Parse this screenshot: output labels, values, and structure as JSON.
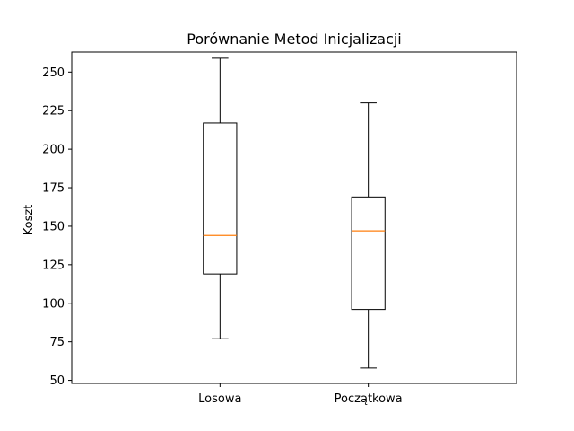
{
  "chart_data": {
    "type": "box",
    "title": "Porównanie Metod Inicjalizacji",
    "xlabel": "",
    "ylabel": "Koszt",
    "ylim": [
      48,
      263
    ],
    "yticks": [
      50,
      75,
      100,
      125,
      150,
      175,
      200,
      225,
      250
    ],
    "grid": false,
    "categories": [
      "Losowa",
      "Początkowa"
    ],
    "boxes": [
      {
        "category": "Losowa",
        "whisker_low": 77,
        "q1": 119,
        "median": 144,
        "q3": 217,
        "whisker_high": 259
      },
      {
        "category": "Początkowa",
        "whisker_low": 58,
        "q1": 96,
        "median": 147,
        "q3": 169,
        "whisker_high": 230
      }
    ],
    "colors": {
      "box": "#000000",
      "median": "#ff7f0e",
      "whisker": "#000000"
    }
  }
}
